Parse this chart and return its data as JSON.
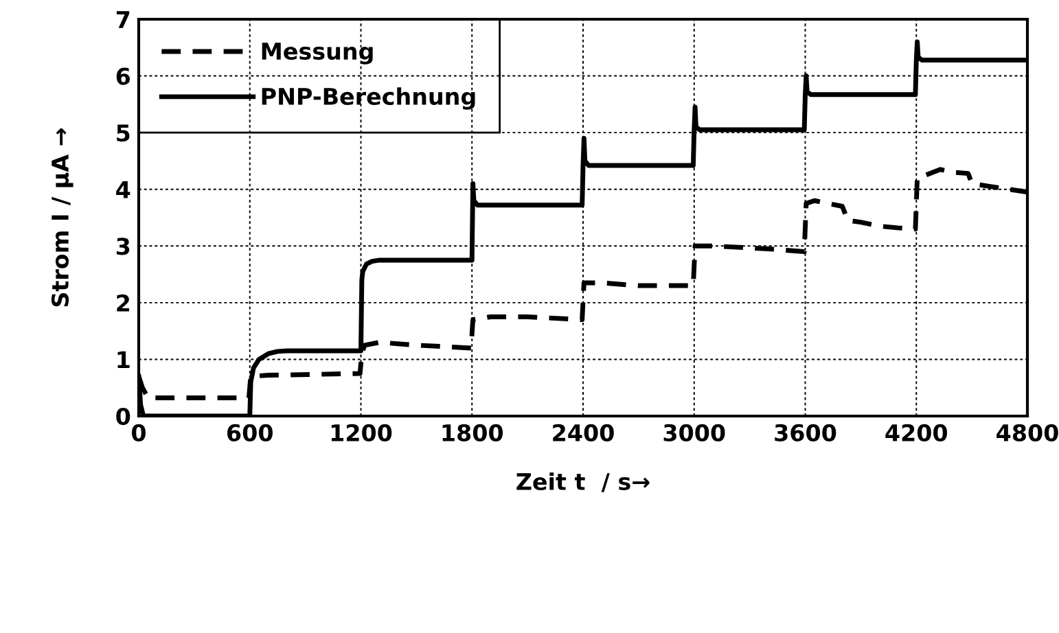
{
  "chart_data": {
    "type": "line",
    "xlabel": "Zeit t  / s→",
    "ylabel": "Strom I / µA →",
    "xlim": [
      0,
      4800
    ],
    "ylim": [
      0,
      7
    ],
    "xticks": [
      0,
      600,
      1200,
      1800,
      2400,
      3000,
      3600,
      4200,
      4800
    ],
    "yticks": [
      0,
      1,
      2,
      3,
      4,
      5,
      6,
      7
    ],
    "grid": true,
    "legend": "top left",
    "marker": "none",
    "series": [
      {
        "name": "Messung",
        "color": "#000000",
        "line_style": "dashed",
        "x": [
          0,
          20,
          50,
          100,
          595,
          605,
          700,
          1195,
          1205,
          1220,
          1300,
          1500,
          1795,
          1805,
          1900,
          2100,
          2395,
          2405,
          2500,
          2700,
          2995,
          3005,
          3100,
          3400,
          3595,
          3605,
          3650,
          3800,
          3830,
          3900,
          4000,
          4100,
          4195,
          4205,
          4250,
          4330,
          4400,
          4480,
          4500,
          4600,
          4800
        ],
        "values": [
          0.7,
          0.5,
          0.32,
          0.32,
          0.32,
          0.7,
          0.72,
          0.75,
          1.1,
          1.25,
          1.3,
          1.25,
          1.2,
          1.7,
          1.75,
          1.75,
          1.7,
          2.35,
          2.35,
          2.3,
          2.3,
          3.0,
          3.0,
          2.95,
          2.9,
          3.75,
          3.8,
          3.7,
          3.45,
          3.42,
          3.35,
          3.32,
          3.3,
          4.2,
          4.25,
          4.35,
          4.3,
          4.28,
          4.1,
          4.05,
          3.95
        ]
      },
      {
        "name": "PNP-Berechnung",
        "color": "#000000",
        "line_style": "solid",
        "x": [
          0,
          10,
          25,
          595,
          600,
          605,
          620,
          650,
          700,
          750,
          800,
          1195,
          1200,
          1205,
          1210,
          1230,
          1260,
          1300,
          1795,
          1800,
          1805,
          1810,
          1830,
          2395,
          2400,
          2405,
          2410,
          2430,
          2995,
          3000,
          3005,
          3010,
          3030,
          3595,
          3600,
          3605,
          3610,
          3630,
          4195,
          4200,
          4205,
          4210,
          4230,
          4800
        ],
        "values": [
          0.7,
          0.2,
          0.0,
          0.0,
          0.0,
          0.6,
          0.85,
          1.0,
          1.1,
          1.14,
          1.15,
          1.15,
          1.15,
          2.4,
          2.55,
          2.68,
          2.73,
          2.75,
          2.75,
          2.75,
          4.1,
          3.8,
          3.72,
          3.72,
          4.42,
          4.9,
          4.5,
          4.42,
          4.42,
          5.05,
          5.45,
          5.1,
          5.05,
          5.05,
          5.67,
          6.0,
          5.72,
          5.67,
          5.67,
          6.28,
          6.6,
          6.33,
          6.28,
          6.28
        ]
      }
    ]
  }
}
